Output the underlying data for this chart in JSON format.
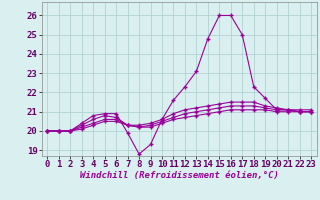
{
  "xlabel": "Windchill (Refroidissement éolien,°C)",
  "x_values": [
    0,
    1,
    2,
    3,
    4,
    5,
    6,
    7,
    8,
    9,
    10,
    11,
    12,
    13,
    14,
    15,
    16,
    17,
    18,
    19,
    20,
    21,
    22,
    23
  ],
  "series1": [
    20.0,
    20.0,
    20.0,
    20.4,
    20.8,
    20.9,
    20.9,
    19.9,
    18.8,
    19.3,
    20.6,
    21.6,
    22.3,
    23.1,
    24.8,
    26.0,
    26.0,
    25.0,
    22.3,
    21.7,
    21.1,
    21.1,
    21.1,
    21.1
  ],
  "series2": [
    20.0,
    20.0,
    20.0,
    20.3,
    20.6,
    20.8,
    20.7,
    20.3,
    20.3,
    20.4,
    20.6,
    20.9,
    21.1,
    21.2,
    21.3,
    21.4,
    21.5,
    21.5,
    21.5,
    21.3,
    21.2,
    21.1,
    21.0,
    21.0
  ],
  "series3": [
    20.0,
    20.0,
    20.0,
    20.2,
    20.4,
    20.6,
    20.6,
    20.3,
    20.2,
    20.3,
    20.5,
    20.7,
    20.9,
    21.0,
    21.1,
    21.2,
    21.3,
    21.3,
    21.3,
    21.2,
    21.1,
    21.1,
    21.0,
    21.0
  ],
  "series4": [
    20.0,
    20.0,
    20.0,
    20.1,
    20.3,
    20.5,
    20.5,
    20.3,
    20.2,
    20.2,
    20.4,
    20.6,
    20.7,
    20.8,
    20.9,
    21.0,
    21.1,
    21.1,
    21.1,
    21.1,
    21.0,
    21.0,
    21.0,
    21.0
  ],
  "line_color": "#990099",
  "bg_color": "#daf0f0",
  "grid_color": "#aacccc",
  "ylim": [
    18.7,
    26.7
  ],
  "yticks": [
    19,
    20,
    21,
    22,
    23,
    24,
    25,
    26
  ],
  "xticks": [
    0,
    1,
    2,
    3,
    4,
    5,
    6,
    7,
    8,
    9,
    10,
    11,
    12,
    13,
    14,
    15,
    16,
    17,
    18,
    19,
    20,
    21,
    22,
    23
  ],
  "tick_fontsize": 6.5,
  "xlabel_fontsize": 6.5
}
